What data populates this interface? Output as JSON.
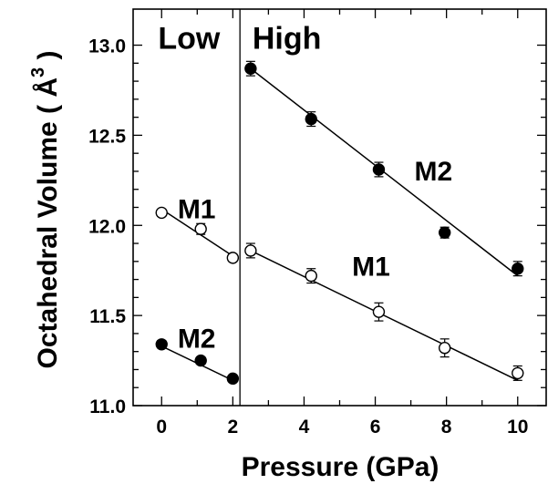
{
  "chart_data": {
    "type": "scatter",
    "xlabel": "Pressure (GPa)",
    "ylabel": "Octahedral Volume ( Å",
    "ylabel_superscript": "3",
    "ylabel_close": " )",
    "xlim": [
      -0.8,
      10.8
    ],
    "ylim": [
      11.0,
      13.2
    ],
    "x_ticks": [
      0,
      2,
      4,
      6,
      8,
      10
    ],
    "y_ticks": [
      11.0,
      11.5,
      12.0,
      12.5,
      13.0
    ],
    "y_tick_labels": [
      "11.0",
      "11.5",
      "12.0",
      "12.5",
      "13.0"
    ],
    "boundary_x": 2.2,
    "regions": [
      {
        "label": "Low",
        "x": -0.1,
        "y": 12.98
      },
      {
        "label": "High",
        "x": 2.55,
        "y": 12.98
      }
    ],
    "series": [
      {
        "name": "M1",
        "label_x": 0.45,
        "label_y": 12.04,
        "filled": false,
        "color": "#000000",
        "points": [
          {
            "x": 0.0,
            "y": 12.07,
            "err": 0.02
          },
          {
            "x": 1.1,
            "y": 11.98,
            "err": 0.03
          },
          {
            "x": 2.0,
            "y": 11.82,
            "err": 0.02
          }
        ],
        "fit": [
          [
            0.0,
            12.09
          ],
          [
            2.0,
            11.83
          ]
        ]
      },
      {
        "name": "M2",
        "label_x": 0.45,
        "label_y": 11.32,
        "filled": true,
        "color": "#000000",
        "points": [
          {
            "x": 0.0,
            "y": 11.34,
            "err": 0.02
          },
          {
            "x": 1.1,
            "y": 11.25,
            "err": 0.02
          },
          {
            "x": 2.0,
            "y": 11.15,
            "err": 0.01
          }
        ],
        "fit": [
          [
            0.0,
            11.33
          ],
          [
            2.0,
            11.14
          ]
        ]
      },
      {
        "name": "M2",
        "label_x": 7.1,
        "label_y": 12.25,
        "filled": true,
        "color": "#000000",
        "points": [
          {
            "x": 2.5,
            "y": 12.87,
            "err": 0.04
          },
          {
            "x": 4.2,
            "y": 12.59,
            "err": 0.04
          },
          {
            "x": 6.1,
            "y": 12.31,
            "err": 0.04
          },
          {
            "x": 7.95,
            "y": 11.96,
            "err": 0.03
          },
          {
            "x": 10.0,
            "y": 11.76,
            "err": 0.04
          }
        ],
        "fit": [
          [
            2.5,
            12.87
          ],
          [
            10.0,
            11.72
          ]
        ]
      },
      {
        "name": "M1",
        "label_x": 5.35,
        "label_y": 11.72,
        "filled": false,
        "color": "#000000",
        "points": [
          {
            "x": 2.5,
            "y": 11.86,
            "err": 0.04
          },
          {
            "x": 4.2,
            "y": 11.72,
            "err": 0.04
          },
          {
            "x": 6.1,
            "y": 11.52,
            "err": 0.05
          },
          {
            "x": 7.95,
            "y": 11.32,
            "err": 0.05
          },
          {
            "x": 10.0,
            "y": 11.18,
            "err": 0.04
          }
        ],
        "fit": [
          [
            2.5,
            11.86
          ],
          [
            10.0,
            11.14
          ]
        ]
      }
    ],
    "grid": false,
    "legend": "none"
  }
}
